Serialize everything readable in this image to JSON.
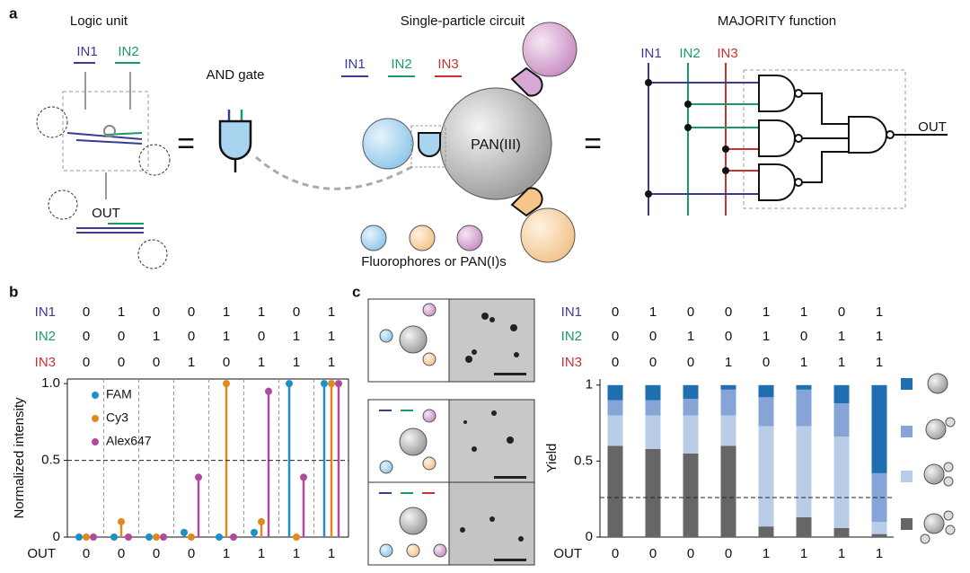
{
  "panel_a": {
    "label": "a",
    "logic_unit": {
      "title": "Logic unit",
      "inputs": [
        "IN1",
        "IN2"
      ],
      "output": "OUT"
    },
    "and_gate": "AND gate",
    "circuit": {
      "title": "Single-particle circuit",
      "inputs": [
        "IN1",
        "IN2",
        "IN3"
      ],
      "core": "PAN(III)",
      "caption": "Fluorophores or PAN(I)s"
    },
    "majority": {
      "title": "MAJORITY function",
      "inputs": [
        "IN1",
        "IN2",
        "IN3"
      ],
      "output": "OUT"
    }
  },
  "chart_data": [
    {
      "panel": "b",
      "type": "stem",
      "row_labels": [
        "IN1",
        "IN2",
        "IN3"
      ],
      "row_colors": [
        "#3b3b8f",
        "#1a9a6a",
        "#c83232"
      ],
      "inputs": [
        [
          0,
          1,
          0,
          0,
          1,
          1,
          0,
          1
        ],
        [
          0,
          0,
          1,
          0,
          1,
          0,
          1,
          1
        ],
        [
          0,
          0,
          0,
          1,
          0,
          1,
          1,
          1
        ]
      ],
      "output_label": "OUT",
      "outputs": [
        0,
        0,
        0,
        0,
        1,
        1,
        1,
        1
      ],
      "ylabel": "Normalized intensity",
      "ylim": [
        0,
        1.03
      ],
      "yticks": [
        0,
        0.5,
        {
          "value": 1,
          "label": "1.0"
        }
      ],
      "threshold": 0.5,
      "series": [
        {
          "name": "FAM",
          "color": "#1f8fc8",
          "values": [
            0,
            0,
            0,
            0.03,
            0,
            0.03,
            1,
            1
          ]
        },
        {
          "name": "Cy3",
          "color": "#e08a1e",
          "values": [
            0,
            0.1,
            0,
            0,
            1,
            0.1,
            0,
            1
          ]
        },
        {
          "name": "Alex647",
          "color": "#b04a9a",
          "values": [
            0,
            0,
            0,
            0.39,
            0,
            0.95,
            0.39,
            1
          ]
        }
      ]
    },
    {
      "panel": "c",
      "type": "stacked_bar",
      "row_labels": [
        "IN1",
        "IN2",
        "IN3"
      ],
      "row_colors": [
        "#3b3b8f",
        "#1a9a6a",
        "#c83232"
      ],
      "inputs": [
        [
          0,
          1,
          0,
          0,
          1,
          1,
          0,
          1
        ],
        [
          0,
          0,
          1,
          0,
          1,
          0,
          1,
          1
        ],
        [
          0,
          0,
          0,
          1,
          0,
          1,
          1,
          1
        ]
      ],
      "output_label": "OUT",
      "outputs": [
        0,
        0,
        0,
        0,
        1,
        1,
        1,
        1
      ],
      "ylabel": "Yield",
      "ylim": [
        0,
        1.04
      ],
      "yticks": [
        0,
        0.5,
        1
      ],
      "threshold": 0.26,
      "series": [
        {
          "color": "#666666",
          "values": [
            0.6,
            0.58,
            0.55,
            0.6,
            0.07,
            0.13,
            0.06,
            0.02
          ]
        },
        {
          "color": "#b9cde9",
          "values": [
            0.2,
            0.22,
            0.25,
            0.2,
            0.66,
            0.6,
            0.6,
            0.08
          ]
        },
        {
          "color": "#86a5d6",
          "values": [
            0.1,
            0.1,
            0.11,
            0.17,
            0.19,
            0.24,
            0.22,
            0.32
          ]
        },
        {
          "color": "#1f6fb0",
          "values": [
            0.1,
            0.1,
            0.09,
            0.03,
            0.08,
            0.03,
            0.12,
            0.58
          ]
        }
      ]
    }
  ]
}
